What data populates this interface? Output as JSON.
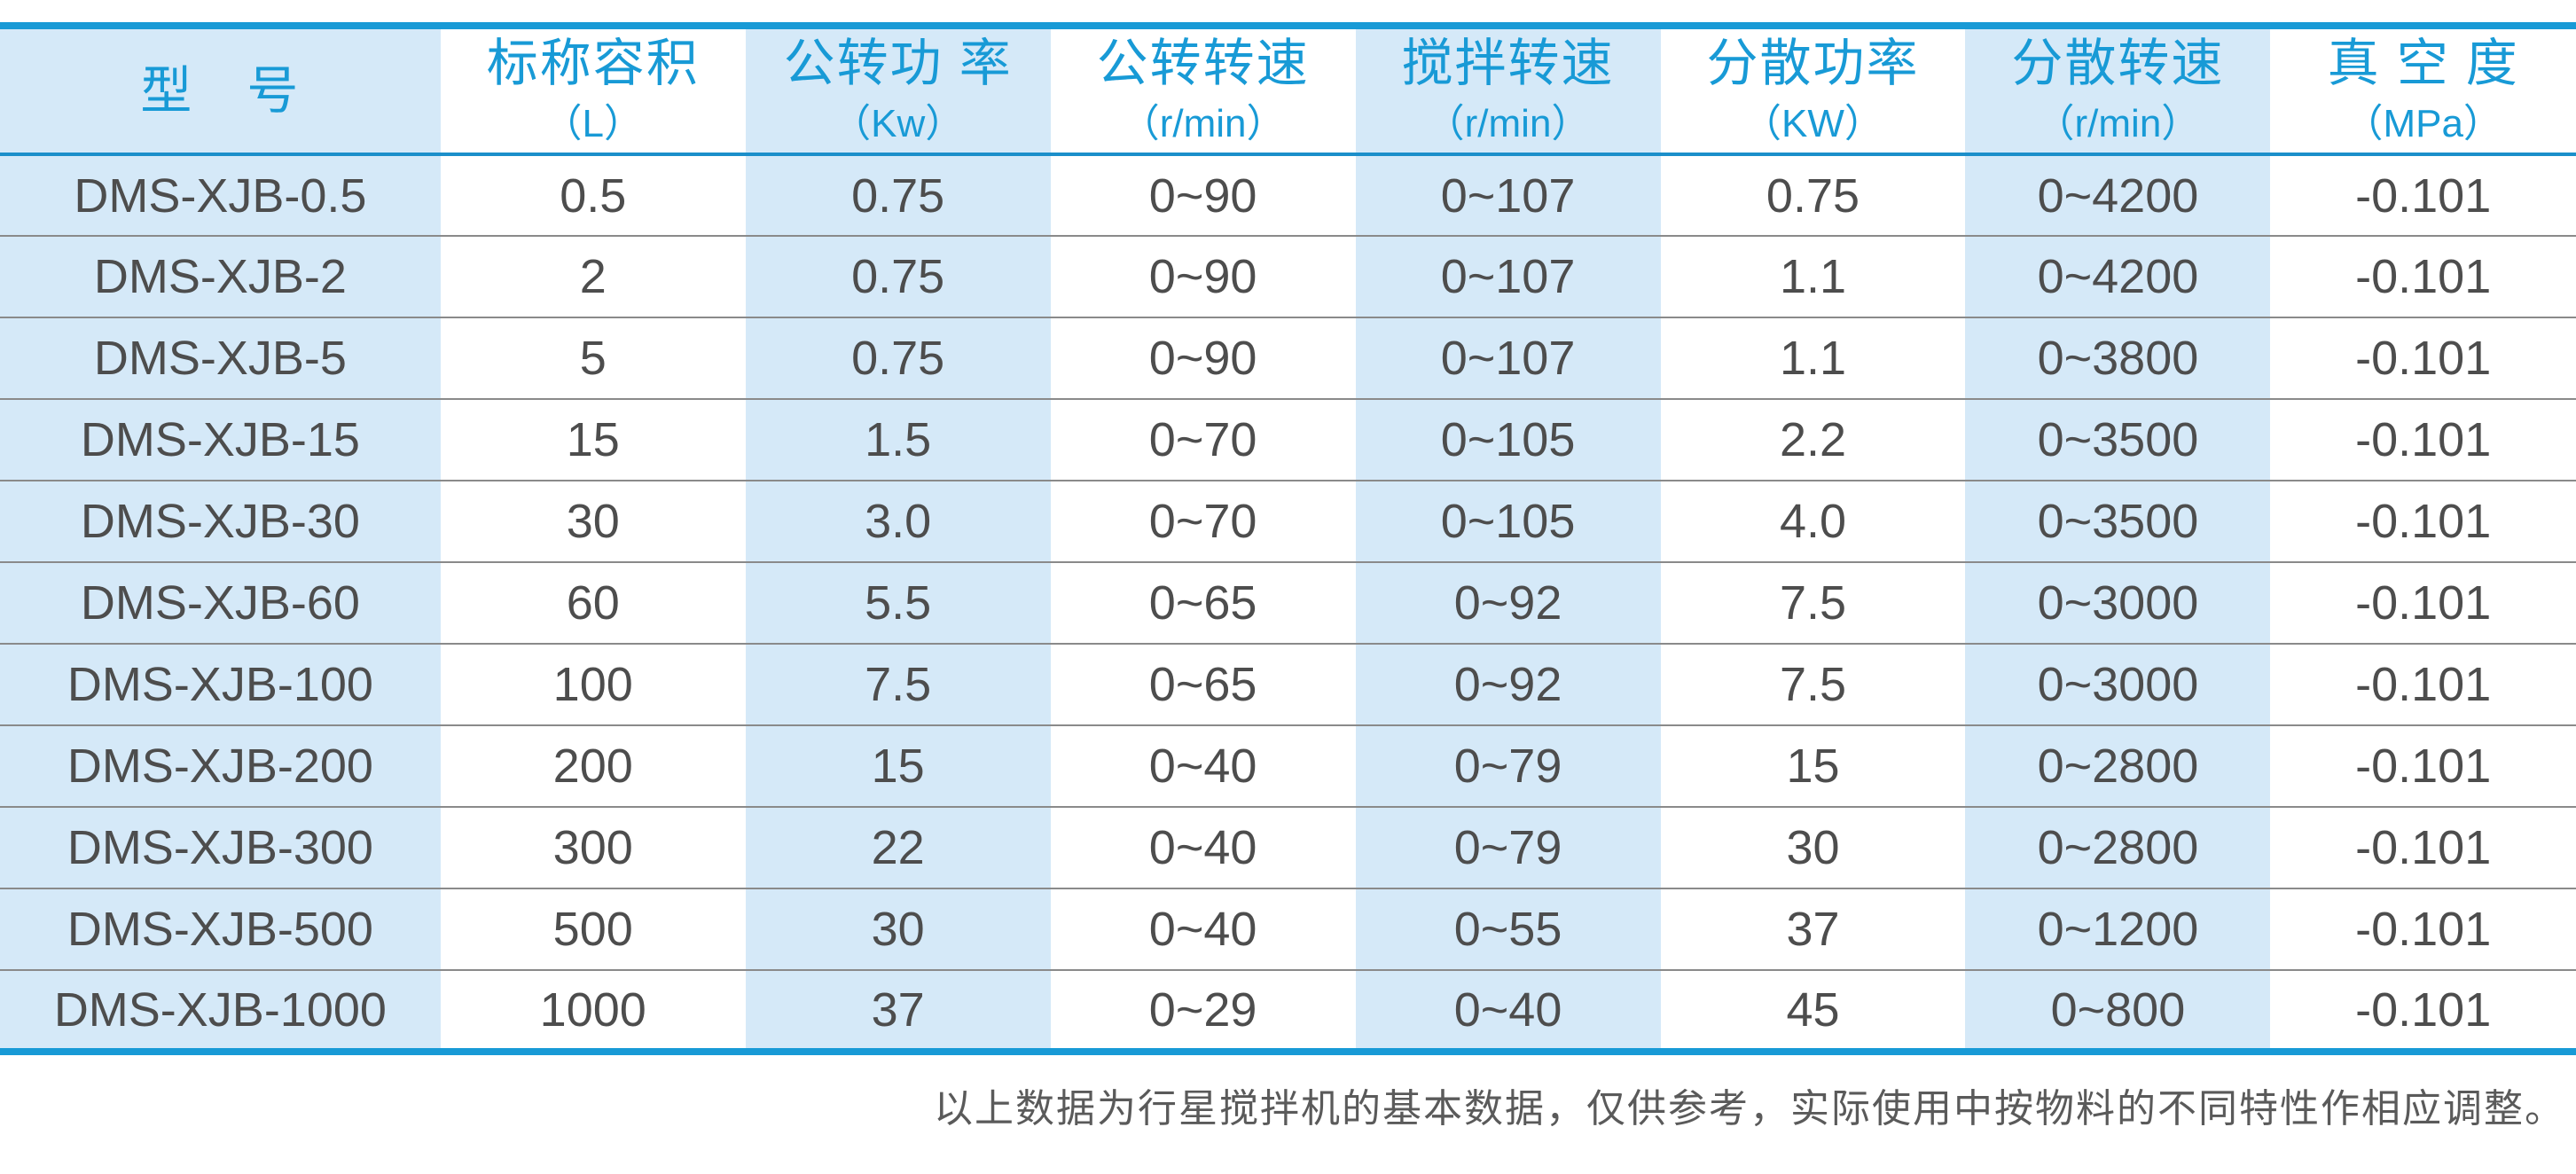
{
  "table": {
    "columns": [
      {
        "label": "型　号",
        "unit": ""
      },
      {
        "label": "标称容积",
        "unit": "（L）"
      },
      {
        "label": "公转功 率",
        "unit": "（Kw）"
      },
      {
        "label": "公转转速",
        "unit": "（r/min）"
      },
      {
        "label": "搅拌转速",
        "unit": "（r/min）"
      },
      {
        "label": "分散功率",
        "unit": "（KW）"
      },
      {
        "label": "分散转速",
        "unit": "（r/min）"
      },
      {
        "label": "真 空 度",
        "unit": "（MPa）"
      }
    ],
    "rows": [
      [
        "DMS-XJB-0.5",
        "0.5",
        "0.75",
        "0~90",
        "0~107",
        "0.75",
        "0~4200",
        "-0.101"
      ],
      [
        "DMS-XJB-2",
        "2",
        "0.75",
        "0~90",
        "0~107",
        "1.1",
        "0~4200",
        "-0.101"
      ],
      [
        "DMS-XJB-5",
        "5",
        "0.75",
        "0~90",
        "0~107",
        "1.1",
        "0~3800",
        "-0.101"
      ],
      [
        "DMS-XJB-15",
        "15",
        "1.5",
        "0~70",
        "0~105",
        "2.2",
        "0~3500",
        "-0.101"
      ],
      [
        "DMS-XJB-30",
        "30",
        "3.0",
        "0~70",
        "0~105",
        "4.0",
        "0~3500",
        "-0.101"
      ],
      [
        "DMS-XJB-60",
        "60",
        "5.5",
        "0~65",
        "0~92",
        "7.5",
        "0~3000",
        "-0.101"
      ],
      [
        "DMS-XJB-100",
        "100",
        "7.5",
        "0~65",
        "0~92",
        "7.5",
        "0~3000",
        "-0.101"
      ],
      [
        "DMS-XJB-200",
        "200",
        "15",
        "0~40",
        "0~79",
        "15",
        "0~2800",
        "-0.101"
      ],
      [
        "DMS-XJB-300",
        "300",
        "22",
        "0~40",
        "0~79",
        "30",
        "0~2800",
        "-0.101"
      ],
      [
        "DMS-XJB-500",
        "500",
        "30",
        "0~40",
        "0~55",
        "37",
        "0~1200",
        "-0.101"
      ],
      [
        "DMS-XJB-1000",
        "1000",
        "37",
        "0~29",
        "0~40",
        "45",
        "0~800",
        "-0.101"
      ]
    ],
    "column_widths_pct": [
      17.1,
      11.84,
      11.84,
      11.84,
      11.84,
      11.84,
      11.84,
      11.86
    ]
  },
  "footer": {
    "note": "以上数据为行星搅拌机的基本数据，仅供参考，实际使用中按物料的不同特性作相应调整。"
  },
  "colors": {
    "accent_blue": "#189ad6",
    "header_divider": "#1b8fca",
    "stripe_light_blue": "#d5e9f8",
    "body_text": "#4d4d4d",
    "row_divider": "#8a8a8a",
    "footer_text": "#5a5a5a"
  }
}
